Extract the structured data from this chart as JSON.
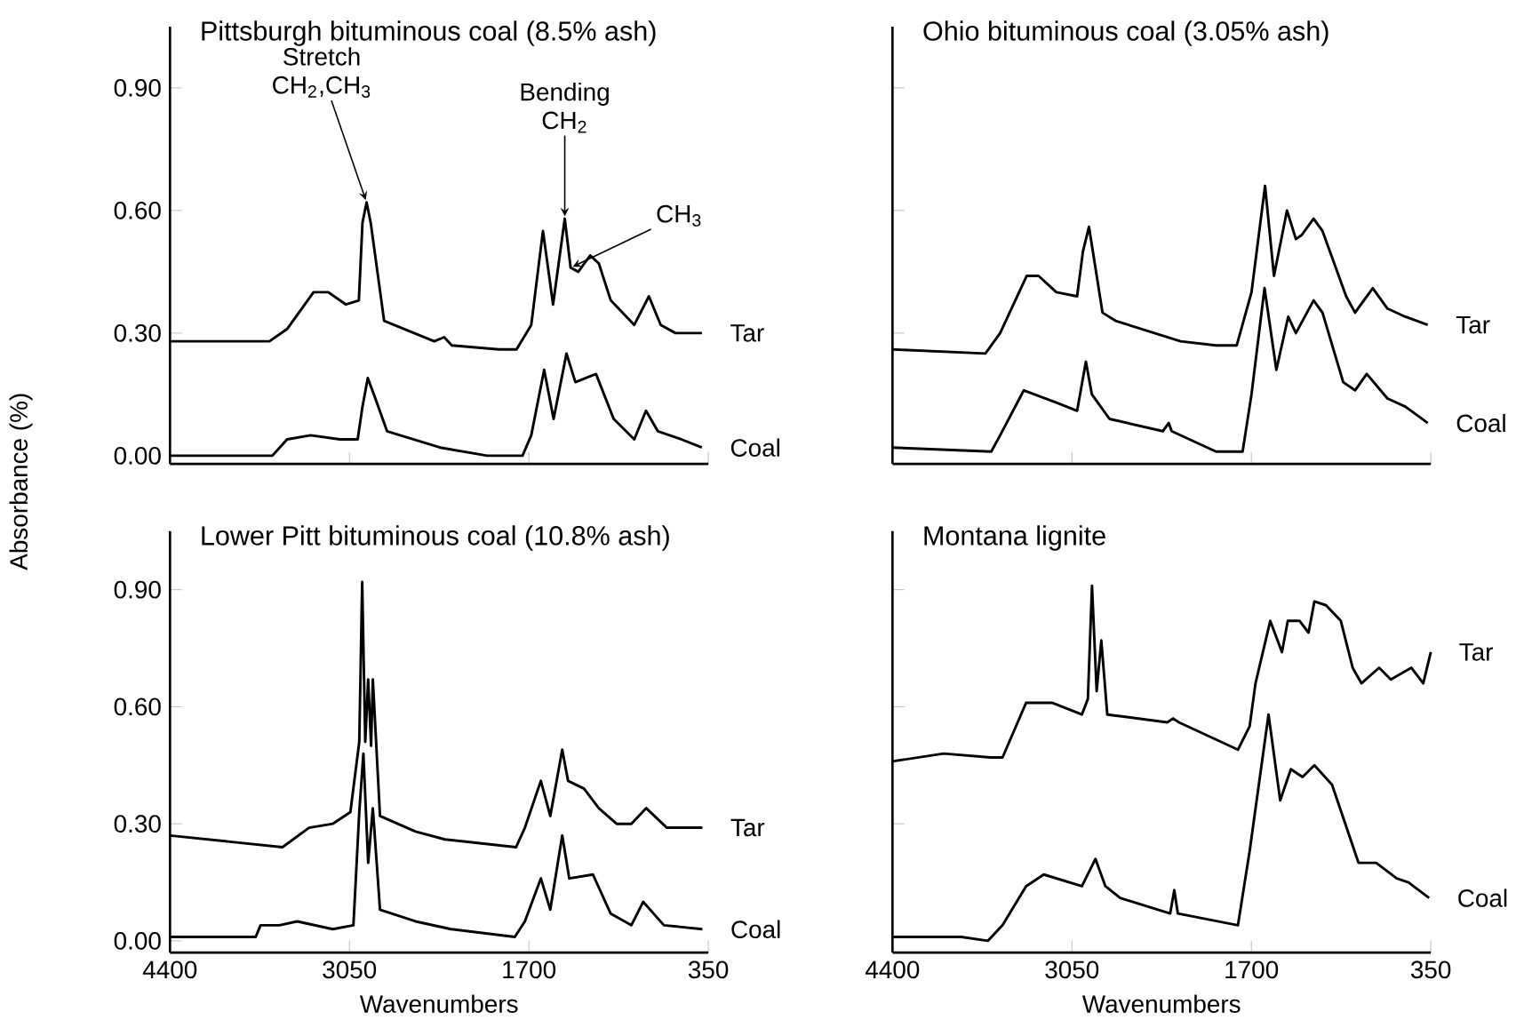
{
  "chart_data": [
    {
      "type": "line",
      "title": "Pittsburgh bituminous coal (8.5% ash)",
      "ylabel": "Absorbance (%)",
      "xlim": [
        4400,
        350
      ],
      "ylim": [
        -0.02,
        1.05
      ],
      "xticks": [
        4400,
        3050,
        1700,
        350
      ],
      "yticks": [
        {
          "value": 0,
          "label": "0.00"
        },
        {
          "value": 0.3,
          "label": "0.30"
        },
        {
          "value": 0.6,
          "label": "0.60"
        },
        {
          "value": 0.9,
          "label": "0.90"
        }
      ],
      "tick_labels": "y",
      "annotations": [
        {
          "text": "Stretch CH$_{2}$,CH$_{3}$",
          "x": 2921,
          "y": 0.62
        },
        {
          "text": "Bending CH$_{2}$",
          "x": 1430,
          "y": 0.58
        },
        {
          "text": "CH$_{3}$",
          "x": 1386,
          "y": 0.46
        }
      ],
      "series": [
        {
          "name": "Tar",
          "color": "#000000",
          "x": [
            4400,
            3652,
            3519,
            3320,
            3209,
            3076,
            2979,
            2952,
            2921,
            2890,
            2789,
            2412,
            2337,
            2280,
            1925,
            1793,
            1682,
            1594,
            1518,
            1430,
            1386,
            1328,
            1239,
            1173,
            1084,
            907,
            797,
            708,
            597,
            398
          ],
          "values": [
            0.28,
            0.28,
            0.31,
            0.4,
            0.4,
            0.37,
            0.38,
            0.57,
            0.62,
            0.57,
            0.33,
            0.28,
            0.29,
            0.27,
            0.26,
            0.26,
            0.32,
            0.55,
            0.37,
            0.58,
            0.46,
            0.45,
            0.49,
            0.47,
            0.38,
            0.32,
            0.39,
            0.32,
            0.3,
            0.3
          ]
        },
        {
          "name": "Coal",
          "color": "#000000",
          "x": [
            4400,
            3630,
            3519,
            3342,
            3121,
            2988,
            2952,
            2912,
            2855,
            2767,
            2368,
            2014,
            1748,
            1682,
            1585,
            1514,
            1417,
            1350,
            1195,
            1062,
            907,
            819,
            730,
            553,
            398
          ],
          "values": [
            0.0,
            0.0,
            0.04,
            0.05,
            0.04,
            0.04,
            0.12,
            0.19,
            0.14,
            0.06,
            0.02,
            0.0,
            0.0,
            0.05,
            0.21,
            0.09,
            0.25,
            0.18,
            0.2,
            0.09,
            0.04,
            0.11,
            0.06,
            0.04,
            0.02
          ]
        }
      ]
    },
    {
      "type": "line",
      "title": "Ohio bituminous coal (3.05% ash)",
      "xlim": [
        4400,
        350
      ],
      "ylim": [
        -0.02,
        1.05
      ],
      "xticks": [
        4400,
        3050,
        1700,
        350
      ],
      "yticks": [
        0.3,
        0.6,
        0.9
      ],
      "tick_labels": false,
      "series": [
        {
          "name": "Tar",
          "color": "#000000",
          "x": [
            4400,
            3701,
            3590,
            3390,
            3301,
            3167,
            3011,
            2967,
            2922,
            2878,
            2820,
            2722,
            2233,
            1966,
            1810,
            1699,
            1597,
            1530,
            1432,
            1365,
            1321,
            1232,
            1165,
            987,
            920,
            787,
            676,
            542,
            373
          ],
          "values": [
            0.26,
            0.25,
            0.3,
            0.44,
            0.44,
            0.4,
            0.39,
            0.5,
            0.56,
            0.47,
            0.35,
            0.33,
            0.28,
            0.27,
            0.27,
            0.4,
            0.66,
            0.44,
            0.6,
            0.53,
            0.54,
            0.58,
            0.55,
            0.39,
            0.35,
            0.41,
            0.36,
            0.34,
            0.32
          ]
        },
        {
          "name": "Coal",
          "color": "#000000",
          "x": [
            4400,
            3657,
            3590,
            3412,
            3167,
            3011,
            2945,
            2900,
            2767,
            2366,
            2322,
            2300,
            1966,
            1766,
            1699,
            1601,
            1512,
            1423,
            1365,
            1232,
            1165,
            1009,
            920,
            832,
            676,
            542,
            373
          ],
          "values": [
            0.02,
            0.01,
            0.05,
            0.16,
            0.13,
            0.11,
            0.23,
            0.15,
            0.09,
            0.06,
            0.08,
            0.06,
            0.01,
            0.01,
            0.15,
            0.41,
            0.21,
            0.34,
            0.3,
            0.38,
            0.35,
            0.18,
            0.16,
            0.2,
            0.14,
            0.12,
            0.08
          ]
        }
      ]
    },
    {
      "type": "line",
      "title": "Lower Pitt bituminous coal (10.8% ash)",
      "xlabel": "Wavenumbers",
      "xlim": [
        4400,
        350
      ],
      "ylim": [
        -0.03,
        1.05
      ],
      "xticks": [
        4400,
        3050,
        1700,
        350
      ],
      "yticks": [
        {
          "value": 0,
          "label": "0.00"
        },
        {
          "value": 0.3,
          "label": "0.30"
        },
        {
          "value": 0.6,
          "label": "0.60"
        },
        {
          "value": 0.9,
          "label": "0.90"
        }
      ],
      "series": [
        {
          "name": "Tar",
          "color": "#000000",
          "x": [
            4400,
            3554,
            3354,
            3176,
            3043,
            2976,
            2954,
            2931,
            2909,
            2887,
            2874,
            2820,
            2553,
            2331,
            1797,
            1730,
            1610,
            1539,
            1449,
            1405,
            1285,
            1174,
            1040,
            929,
            817,
            662,
            550,
            395
          ],
          "values": [
            0.27,
            0.24,
            0.29,
            0.3,
            0.33,
            0.51,
            0.92,
            0.51,
            0.67,
            0.5,
            0.67,
            0.32,
            0.28,
            0.26,
            0.24,
            0.29,
            0.41,
            0.32,
            0.49,
            0.41,
            0.39,
            0.34,
            0.3,
            0.3,
            0.34,
            0.29,
            0.29,
            0.29
          ]
        },
        {
          "name": "Coal",
          "color": "#000000",
          "x": [
            4400,
            3755,
            3719,
            3577,
            3443,
            3176,
            3020,
            2976,
            2945,
            2909,
            2874,
            2820,
            2553,
            2286,
            1806,
            1730,
            1610,
            1539,
            1449,
            1396,
            1218,
            1085,
            929,
            840,
            684,
            395
          ],
          "values": [
            0.01,
            0.01,
            0.04,
            0.04,
            0.05,
            0.03,
            0.04,
            0.33,
            0.48,
            0.2,
            0.34,
            0.08,
            0.05,
            0.03,
            0.01,
            0.05,
            0.16,
            0.08,
            0.27,
            0.16,
            0.17,
            0.07,
            0.04,
            0.1,
            0.04,
            0.03
          ]
        }
      ]
    },
    {
      "type": "line",
      "title": "Montana lignite",
      "xlabel": "Wavenumbers",
      "xlim": [
        4400,
        350
      ],
      "ylim": [
        -0.03,
        1.05
      ],
      "xticks": [
        4400,
        3050,
        1700,
        350
      ],
      "yticks": [
        0.3,
        0.6,
        0.9
      ],
      "tick_labels": "x",
      "series": [
        {
          "name": "Tar",
          "color": "#000000",
          "x": [
            4400,
            4015,
            3661,
            3572,
            3395,
            3196,
            2975,
            2930,
            2899,
            2864,
            2829,
            2784,
            2333,
            2289,
            2245,
            1801,
            1713,
            1669,
            1558,
            1470,
            1426,
            1337,
            1270,
            1226,
            1138,
            1027,
            938,
            872,
            739,
            651,
            496,
            407,
            350
          ],
          "values": [
            0.46,
            0.48,
            0.47,
            0.47,
            0.61,
            0.61,
            0.58,
            0.62,
            0.91,
            0.64,
            0.77,
            0.58,
            0.56,
            0.57,
            0.56,
            0.49,
            0.55,
            0.66,
            0.82,
            0.74,
            0.82,
            0.82,
            0.79,
            0.87,
            0.86,
            0.82,
            0.7,
            0.66,
            0.7,
            0.67,
            0.7,
            0.66,
            0.74
          ]
        },
        {
          "name": "Coal",
          "color": "#000000",
          "x": [
            4400,
            3882,
            3683,
            3572,
            3395,
            3262,
            2975,
            2873,
            2798,
            2687,
            2311,
            2280,
            2253,
            1801,
            1713,
            1571,
            1483,
            1403,
            1315,
            1226,
            1093,
            894,
            761,
            606,
            518,
            363
          ],
          "values": [
            0.01,
            0.01,
            0.0,
            0.04,
            0.14,
            0.17,
            0.14,
            0.21,
            0.14,
            0.11,
            0.07,
            0.13,
            0.07,
            0.04,
            0.23,
            0.58,
            0.36,
            0.44,
            0.42,
            0.45,
            0.4,
            0.2,
            0.2,
            0.16,
            0.15,
            0.11
          ]
        }
      ]
    }
  ]
}
